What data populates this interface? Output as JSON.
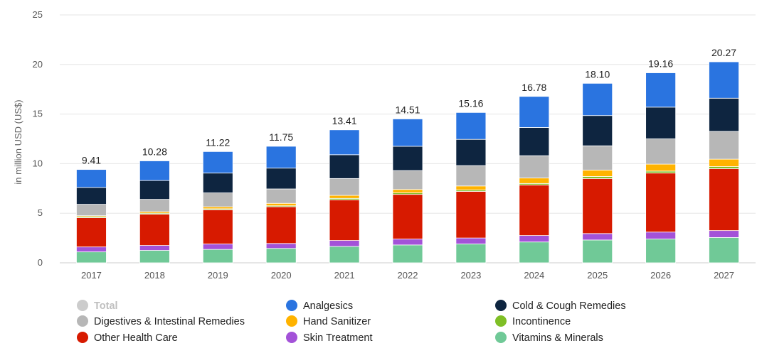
{
  "chart_data": {
    "type": "bar",
    "stacked": true,
    "title": "",
    "xlabel": "",
    "ylabel": "in million USD (US$)",
    "ylim": [
      0,
      25
    ],
    "yticks": [
      0,
      5,
      10,
      15,
      20,
      25
    ],
    "grid": true,
    "legend_position": "bottom",
    "categories": [
      "2017",
      "2018",
      "2019",
      "2020",
      "2021",
      "2022",
      "2023",
      "2024",
      "2025",
      "2026",
      "2027"
    ],
    "totals": [
      9.41,
      10.28,
      11.22,
      11.75,
      13.41,
      14.51,
      15.16,
      16.78,
      18.1,
      19.16,
      20.27
    ],
    "total_labels": [
      "9.41",
      "10.28",
      "11.22",
      "11.75",
      "13.41",
      "14.51",
      "15.16",
      "16.78",
      "18.10",
      "19.16",
      "20.27"
    ],
    "series": [
      {
        "name": "Vitamins & Minerals",
        "color": "#70c997",
        "values": [
          1.1,
          1.25,
          1.35,
          1.45,
          1.65,
          1.8,
          1.9,
          2.1,
          2.3,
          2.4,
          2.55
        ]
      },
      {
        "name": "Skin Treatment",
        "color": "#a352d8",
        "values": [
          0.5,
          0.5,
          0.55,
          0.5,
          0.6,
          0.6,
          0.6,
          0.65,
          0.65,
          0.7,
          0.7
        ]
      },
      {
        "name": "Other Health Care",
        "color": "#d71a00",
        "values": [
          2.95,
          3.15,
          3.45,
          3.7,
          4.1,
          4.5,
          4.7,
          5.1,
          5.55,
          5.95,
          6.25
        ]
      },
      {
        "name": "Incontinence",
        "color": "#7fbf26",
        "values": [
          0.1,
          0.1,
          0.1,
          0.1,
          0.15,
          0.15,
          0.15,
          0.15,
          0.2,
          0.2,
          0.2
        ]
      },
      {
        "name": "Hand Sanitizer",
        "color": "#ffb300",
        "values": [
          0.1,
          0.15,
          0.2,
          0.25,
          0.3,
          0.35,
          0.4,
          0.55,
          0.65,
          0.7,
          0.75
        ]
      },
      {
        "name": "Digestives & Intestinal Remedies",
        "color": "#b7b7b7",
        "values": [
          1.15,
          1.25,
          1.4,
          1.45,
          1.7,
          1.9,
          2.05,
          2.25,
          2.45,
          2.55,
          2.8
        ]
      },
      {
        "name": "Cold & Cough Remedies",
        "color": "#0e2540",
        "values": [
          1.7,
          1.9,
          2.0,
          2.1,
          2.4,
          2.45,
          2.65,
          2.85,
          3.05,
          3.2,
          3.35
        ]
      },
      {
        "name": "Analgesics",
        "color": "#2a74e0",
        "values": [
          1.81,
          1.98,
          2.17,
          2.2,
          2.51,
          2.76,
          2.71,
          3.13,
          3.25,
          3.46,
          3.67
        ]
      }
    ],
    "legend": [
      {
        "name": "Total",
        "color": "#cccccc",
        "disabled": true
      },
      {
        "name": "Analgesics",
        "color": "#2a74e0"
      },
      {
        "name": "Cold & Cough Remedies",
        "color": "#0e2540"
      },
      {
        "name": "Digestives & Intestinal Remedies",
        "color": "#b7b7b7"
      },
      {
        "name": "Hand Sanitizer",
        "color": "#ffb300"
      },
      {
        "name": "Incontinence",
        "color": "#7fbf26"
      },
      {
        "name": "Other Health Care",
        "color": "#d71a00"
      },
      {
        "name": "Skin Treatment",
        "color": "#a352d8"
      },
      {
        "name": "Vitamins & Minerals",
        "color": "#70c997"
      }
    ]
  }
}
